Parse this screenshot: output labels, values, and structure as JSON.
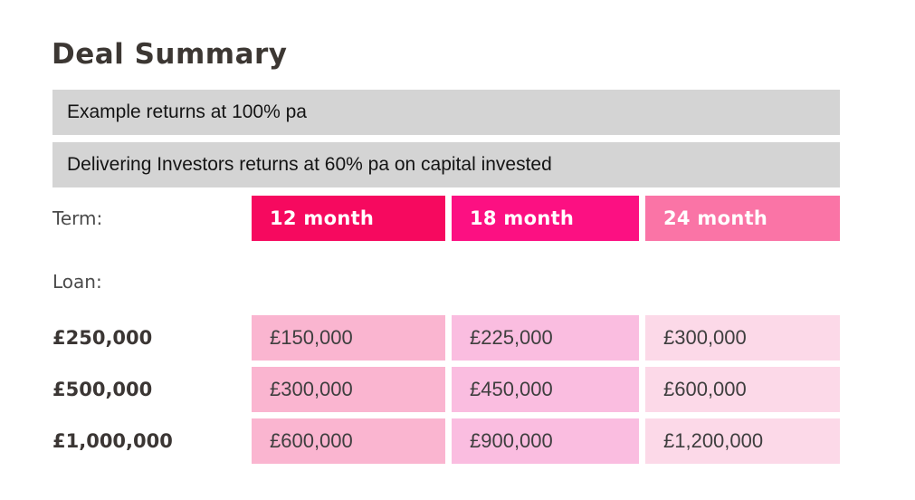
{
  "page": {
    "title": "Deal Summary"
  },
  "banners": [
    {
      "text": "Example returns at 100% pa"
    },
    {
      "text": "Delivering Investors returns at 60% pa on capital invested"
    }
  ],
  "term": {
    "label": "Term:",
    "options": [
      {
        "label": "12 month",
        "color": "#f6095f"
      },
      {
        "label": "18 month",
        "color": "#fc1082"
      },
      {
        "label": "24 month",
        "color": "#fa74a6"
      }
    ]
  },
  "loan": {
    "label": "Loan:"
  },
  "table": {
    "column_colors": [
      "#fab5d0",
      "#fabde0",
      "#fcd9e8"
    ],
    "rows": [
      {
        "loan": "£250,000",
        "returns": [
          "£150,000",
          "£225,000",
          "£300,000"
        ]
      },
      {
        "loan": "£500,000",
        "returns": [
          "£300,000",
          "£450,000",
          "£600,000"
        ]
      },
      {
        "loan": "£1,000,000",
        "returns": [
          "£600,000",
          "£900,000",
          "£1,200,000"
        ]
      }
    ]
  },
  "colors": {
    "banner_bg": "#d4d4d4",
    "title_text": "#3c3733",
    "cell_text": "#3e3e3e",
    "background": "#ffffff"
  },
  "chart_data": {
    "type": "table",
    "title": "Deal Summary",
    "subtitle_rows": [
      "Example returns at 100% pa",
      "Delivering Investors returns at 60% pa on capital invested"
    ],
    "row_header": "Loan:",
    "column_header": "Term:",
    "columns": [
      "12 month",
      "18 month",
      "24 month"
    ],
    "rows": [
      {
        "loan": 250000,
        "returns": [
          150000,
          225000,
          300000
        ]
      },
      {
        "loan": 500000,
        "returns": [
          300000,
          450000,
          600000
        ]
      },
      {
        "loan": 1000000,
        "returns": [
          600000,
          900000,
          1200000
        ]
      }
    ],
    "currency": "GBP"
  }
}
